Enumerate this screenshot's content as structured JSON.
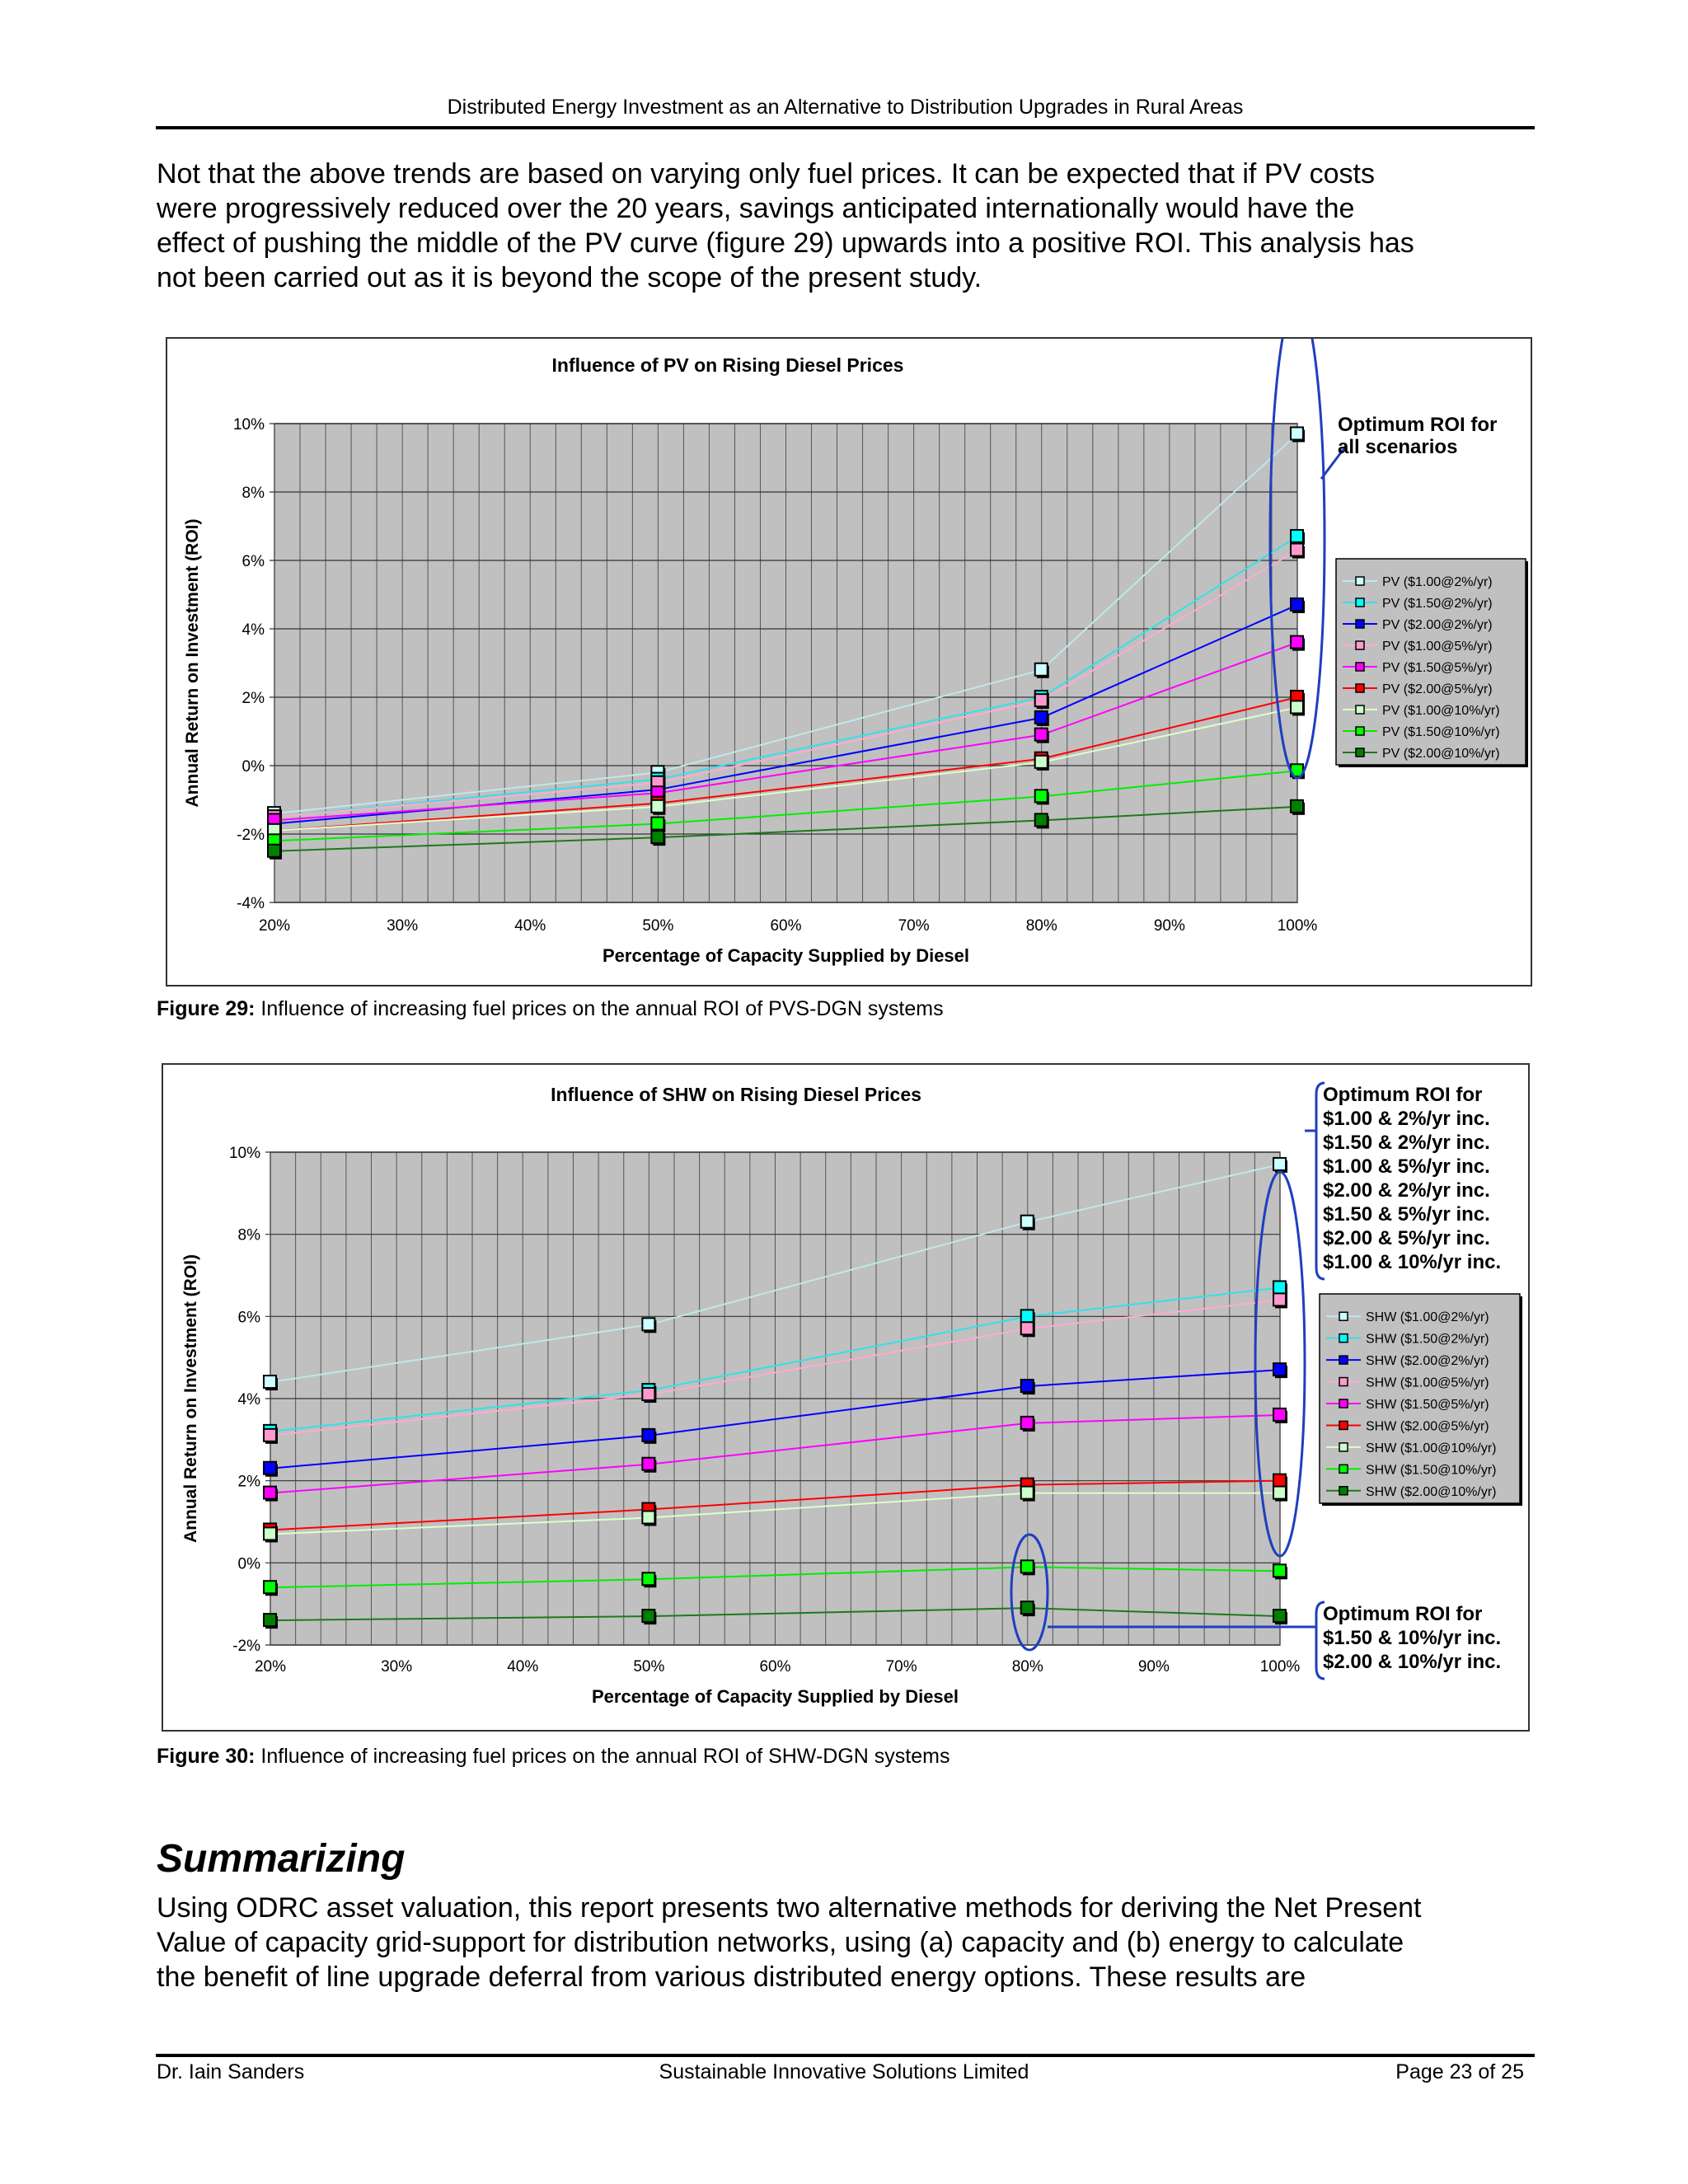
{
  "header": {
    "title": "Distributed Energy Investment as an Alternative to Distribution Upgrades in Rural Areas"
  },
  "intro_paragraph": [
    "Not that the above trends are based on varying only fuel prices. It can be expected that if PV costs",
    "were progressively reduced over the 20 years, savings anticipated internationally would have the",
    "effect of pushing the middle of the PV curve (figure 29) upwards into a positive ROI. This analysis has",
    "not been carried out as it is beyond the scope of the present study."
  ],
  "figure29": {
    "label": "Figure 29:",
    "caption": " Influence of increasing fuel prices on the annual ROI of PVS-DGN systems"
  },
  "figure30": {
    "label": "Figure 30:",
    "caption": " Influence of increasing fuel prices on the annual ROI of SHW-DGN systems"
  },
  "section": {
    "heading": "Summarizing",
    "paragraph": [
      "Using ODRC asset valuation, this report presents two alternative methods for deriving the Net Present",
      "Value of capacity grid-support for distribution networks, using (a) capacity and (b) energy to calculate",
      "the benefit of line upgrade deferral from various distributed energy options. These results are"
    ]
  },
  "footer": {
    "author": "Dr. Iain Sanders",
    "company": "Sustainable Innovative Solutions Limited",
    "page": "Page 23 of 25"
  },
  "chart_data": [
    {
      "type": "line",
      "title": "Influence of PV on Rising Diesel Prices",
      "xlabel": "Percentage of Capacity Supplied by Diesel",
      "ylabel": "Annual Return on Investment (ROI)",
      "x": [
        20,
        50,
        80,
        100
      ],
      "xlim": [
        20,
        100
      ],
      "ylim": [
        -4,
        10
      ],
      "xticks": [
        "20%",
        "30%",
        "40%",
        "50%",
        "60%",
        "70%",
        "80%",
        "90%",
        "100%"
      ],
      "yticks": [
        "-4%",
        "-2%",
        "0%",
        "2%",
        "4%",
        "6%",
        "8%",
        "10%"
      ],
      "grid": true,
      "plot_background": "#c0c0c0",
      "legend": "right",
      "series": [
        {
          "name": "PV ($1.00@2%/yr)",
          "color": "#bfe8e8",
          "marker": "#ccffff",
          "values": [
            -1.4,
            -0.2,
            2.8,
            9.7
          ]
        },
        {
          "name": "PV ($1.50@2%/yr)",
          "color": "#33e0e8",
          "marker": "#00ffff",
          "values": [
            -1.5,
            -0.4,
            2.0,
            6.7
          ]
        },
        {
          "name": "PV ($2.00@2%/yr)",
          "color": "#0000ff",
          "marker": "#0000ff",
          "values": [
            -1.7,
            -0.7,
            1.4,
            4.7
          ]
        },
        {
          "name": "PV ($1.00@5%/yr)",
          "color": "#ffaad0",
          "marker": "#ff99cc",
          "values": [
            -1.5,
            -0.5,
            1.9,
            6.3
          ]
        },
        {
          "name": "PV ($1.50@5%/yr)",
          "color": "#ff00ff",
          "marker": "#ff00ff",
          "values": [
            -1.6,
            -0.8,
            0.9,
            3.6
          ]
        },
        {
          "name": "PV ($2.00@5%/yr)",
          "color": "#ff0000",
          "marker": "#ff0000",
          "values": [
            -1.9,
            -1.1,
            0.2,
            2.0
          ]
        },
        {
          "name": "PV ($1.00@10%/yr)",
          "color": "#ddffcc",
          "marker": "#ccffcc",
          "values": [
            -1.9,
            -1.2,
            0.1,
            1.7
          ]
        },
        {
          "name": "PV ($1.50@10%/yr)",
          "color": "#00ee00",
          "marker": "#00ff00",
          "values": [
            -2.2,
            -1.7,
            -0.9,
            -0.15
          ]
        },
        {
          "name": "PV ($2.00@10%/yr)",
          "color": "#1c7a1c",
          "marker": "#008000",
          "values": [
            -2.5,
            -2.1,
            -1.6,
            -1.2
          ]
        }
      ],
      "annotations": [
        {
          "lines": [
            "Optimum ROI for",
            "all scenarios"
          ]
        }
      ],
      "accent": "#1f3fbf"
    },
    {
      "type": "line",
      "title": "Influence of SHW on Rising Diesel Prices",
      "xlabel": "Percentage of Capacity Supplied by Diesel",
      "ylabel": "Annual Return on Investment (ROI)",
      "x": [
        20,
        50,
        80,
        100
      ],
      "xlim": [
        20,
        100
      ],
      "ylim": [
        -2,
        10
      ],
      "xticks": [
        "20%",
        "30%",
        "40%",
        "50%",
        "60%",
        "70%",
        "80%",
        "90%",
        "100%"
      ],
      "yticks": [
        "-2%",
        "0%",
        "2%",
        "4%",
        "6%",
        "8%",
        "10%"
      ],
      "grid": true,
      "plot_background": "#c0c0c0",
      "legend": "right",
      "series": [
        {
          "name": "SHW ($1.00@2%/yr)",
          "color": "#bfe8e8",
          "marker": "#ccffff",
          "values": [
            4.4,
            5.8,
            8.3,
            9.7
          ]
        },
        {
          "name": "SHW ($1.50@2%/yr)",
          "color": "#33e0e8",
          "marker": "#00ffff",
          "values": [
            3.2,
            4.2,
            6.0,
            6.7
          ]
        },
        {
          "name": "SHW ($2.00@2%/yr)",
          "color": "#0000ff",
          "marker": "#0000ff",
          "values": [
            2.3,
            3.1,
            4.3,
            4.7
          ]
        },
        {
          "name": "SHW ($1.00@5%/yr)",
          "color": "#ffaad0",
          "marker": "#ff99cc",
          "values": [
            3.1,
            4.1,
            5.7,
            6.4
          ]
        },
        {
          "name": "SHW ($1.50@5%/yr)",
          "color": "#ff00ff",
          "marker": "#ff00ff",
          "values": [
            1.7,
            2.4,
            3.4,
            3.6
          ]
        },
        {
          "name": "SHW ($2.00@5%/yr)",
          "color": "#ff0000",
          "marker": "#ff0000",
          "values": [
            0.8,
            1.3,
            1.9,
            2.0
          ]
        },
        {
          "name": "SHW ($1.00@10%/yr)",
          "color": "#ddffcc",
          "marker": "#ccffcc",
          "values": [
            0.7,
            1.1,
            1.7,
            1.7
          ]
        },
        {
          "name": "SHW ($1.50@10%/yr)",
          "color": "#00ee00",
          "marker": "#00ff00",
          "values": [
            -0.6,
            -0.4,
            -0.1,
            -0.2
          ]
        },
        {
          "name": "SHW ($2.00@10%/yr)",
          "color": "#1c7a1c",
          "marker": "#008000",
          "values": [
            -1.4,
            -1.3,
            -1.1,
            -1.3
          ]
        }
      ],
      "annotations": [
        {
          "lines": [
            "Optimum ROI for",
            "$1.00 & 2%/yr inc.",
            "$1.50 & 2%/yr inc.",
            "$1.00 & 5%/yr inc.",
            "$2.00 & 2%/yr inc.",
            "$1.50 & 5%/yr inc.",
            "$2.00 & 5%/yr inc.",
            "$1.00 & 10%/yr inc."
          ]
        },
        {
          "lines": [
            "Optimum ROI for",
            "$1.50 & 10%/yr inc.",
            "$2.00 & 10%/yr inc."
          ]
        }
      ],
      "accent": "#1f3fbf"
    }
  ]
}
